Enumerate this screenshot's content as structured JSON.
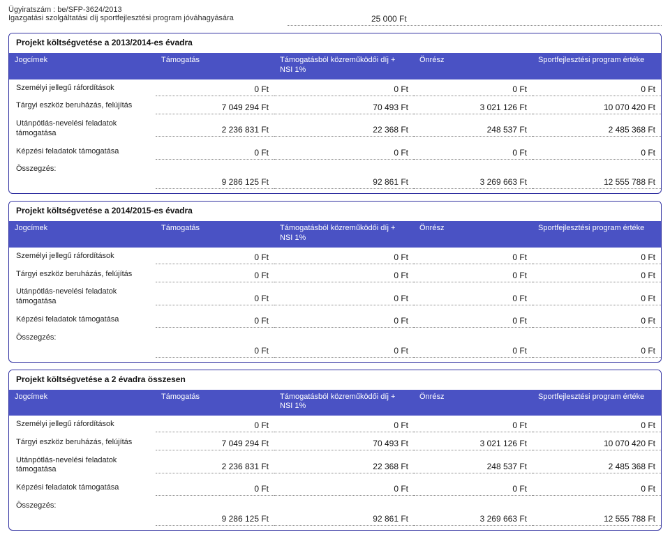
{
  "colors": {
    "section_border": "#3030a0",
    "header_bg": "#4a52c4",
    "header_fg": "#ffffff",
    "dotted_line": "#888888",
    "text": "#222222"
  },
  "doc_header": {
    "case_number": "Ügyiratszám : be/SFP-3624/2013",
    "line2": "Igazgatási szolgáltatási díj sportfejlesztési program jóváhagyására",
    "amount": "25 000 Ft"
  },
  "columns": {
    "label": "Jogcímek",
    "c1": "Támogatás",
    "c2": "Támogatásból közreműködői díj + NSI 1%",
    "c3": "Önrész",
    "c4": "Sportfejlesztési program értéke"
  },
  "row_labels": {
    "r1": "Személyi jellegű ráfordítások",
    "r2": "Tárgyi eszköz beruházás, felújítás",
    "r3": "Utánpótlás-nevelési feladatok támogatása",
    "r4": "Képzési feladatok támogatása"
  },
  "summary_label": "Összegzés:",
  "sections": {
    "s1": {
      "title": "Projekt költségvetése a 2013/2014-es évadra",
      "rows": {
        "r1": {
          "c1": "0 Ft",
          "c2": "0 Ft",
          "c3": "0 Ft",
          "c4": "0 Ft"
        },
        "r2": {
          "c1": "7 049 294 Ft",
          "c2": "70 493 Ft",
          "c3": "3 021 126 Ft",
          "c4": "10 070 420 Ft"
        },
        "r3": {
          "c1": "2 236 831 Ft",
          "c2": "22 368 Ft",
          "c3": "248 537 Ft",
          "c4": "2 485 368 Ft"
        },
        "r4": {
          "c1": "0 Ft",
          "c2": "0 Ft",
          "c3": "0 Ft",
          "c4": "0 Ft"
        }
      },
      "summary": {
        "c1": "9 286 125 Ft",
        "c2": "92 861 Ft",
        "c3": "3 269 663 Ft",
        "c4": "12 555 788 Ft"
      }
    },
    "s2": {
      "title": "Projekt költségvetése a 2014/2015-es évadra",
      "rows": {
        "r1": {
          "c1": "0 Ft",
          "c2": "0 Ft",
          "c3": "0 Ft",
          "c4": "0 Ft"
        },
        "r2": {
          "c1": "0 Ft",
          "c2": "0 Ft",
          "c3": "0 Ft",
          "c4": "0 Ft"
        },
        "r3": {
          "c1": "0 Ft",
          "c2": "0 Ft",
          "c3": "0 Ft",
          "c4": "0 Ft"
        },
        "r4": {
          "c1": "0 Ft",
          "c2": "0 Ft",
          "c3": "0 Ft",
          "c4": "0 Ft"
        }
      },
      "summary": {
        "c1": "0 Ft",
        "c2": "0 Ft",
        "c3": "0 Ft",
        "c4": "0 Ft"
      }
    },
    "s3": {
      "title": "Projekt költségvetése a 2 évadra összesen",
      "rows": {
        "r1": {
          "c1": "0 Ft",
          "c2": "0 Ft",
          "c3": "0 Ft",
          "c4": "0 Ft"
        },
        "r2": {
          "c1": "7 049 294 Ft",
          "c2": "70 493 Ft",
          "c3": "3 021 126 Ft",
          "c4": "10 070 420 Ft"
        },
        "r3": {
          "c1": "2 236 831 Ft",
          "c2": "22 368 Ft",
          "c3": "248 537 Ft",
          "c4": "2 485 368 Ft"
        },
        "r4": {
          "c1": "0 Ft",
          "c2": "0 Ft",
          "c3": "0 Ft",
          "c4": "0 Ft"
        }
      },
      "summary": {
        "c1": "9 286 125 Ft",
        "c2": "92 861 Ft",
        "c3": "3 269 663 Ft",
        "c4": "12 555 788 Ft"
      }
    }
  }
}
